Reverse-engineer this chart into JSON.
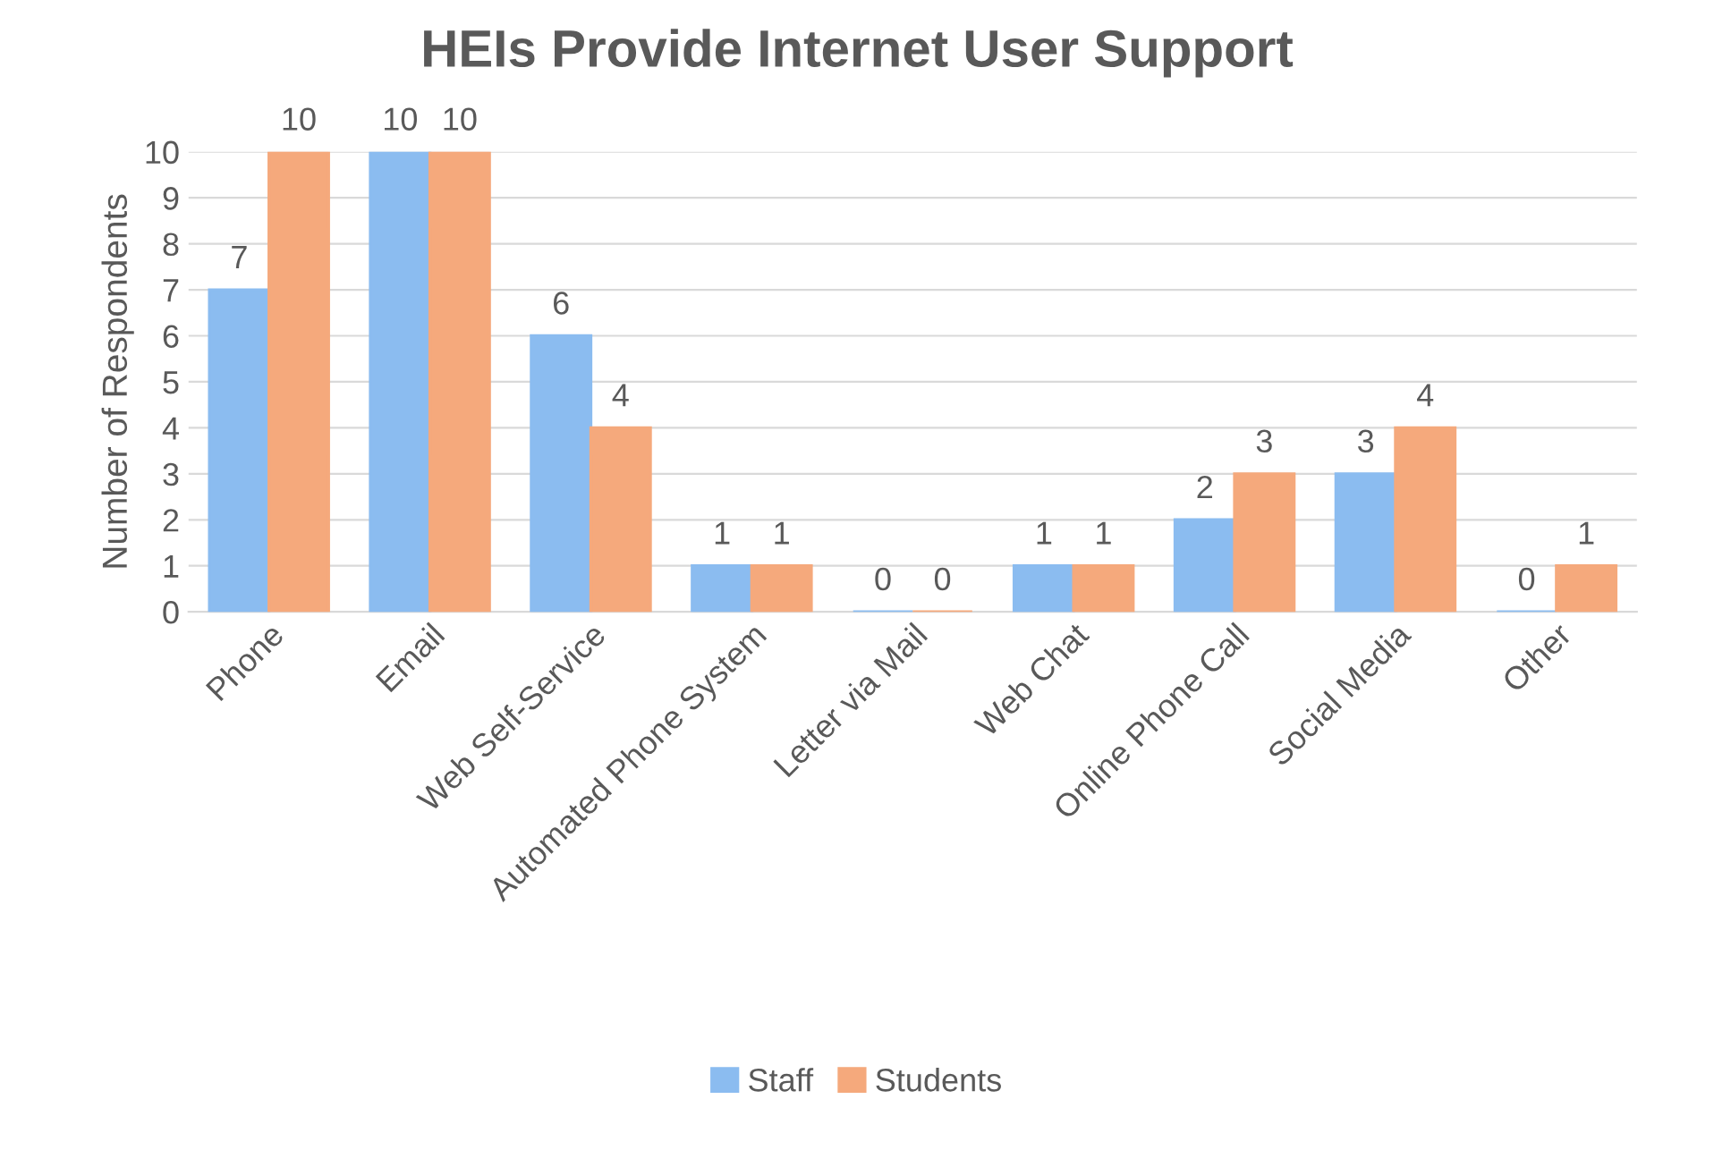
{
  "chart_data": {
    "type": "bar",
    "title": "HEIs Provide Internet User Support",
    "ylabel": "Number of Respondents",
    "categories": [
      "Phone",
      "Email",
      "Web Self-Service",
      "Automated Phone System",
      "Letter via Mail",
      "Web Chat",
      "Online Phone Call",
      "Social Media",
      "Other"
    ],
    "series": [
      {
        "name": "Staff",
        "color": "#8bbcf0",
        "values": [
          7,
          10,
          6,
          1,
          0,
          1,
          2,
          3,
          0
        ]
      },
      {
        "name": "Students",
        "color": "#f5a97c",
        "values": [
          10,
          10,
          4,
          1,
          0,
          1,
          3,
          4,
          1
        ]
      }
    ],
    "ylim": [
      0,
      10
    ],
    "yticks": [
      0,
      1,
      2,
      3,
      4,
      5,
      6,
      7,
      8,
      9,
      10
    ],
    "grid": "y",
    "legend": "bottom",
    "data_labels": true
  }
}
